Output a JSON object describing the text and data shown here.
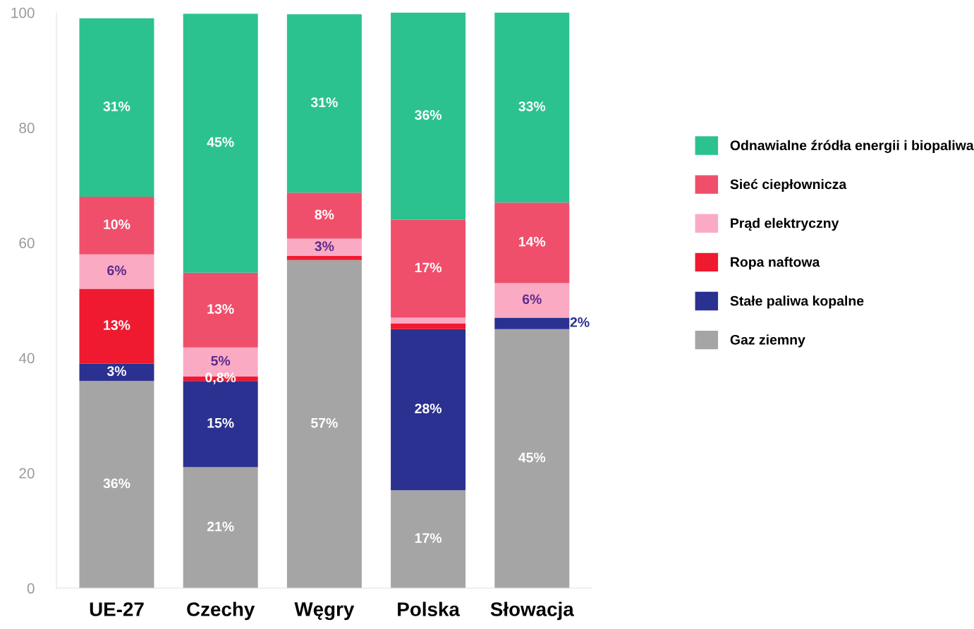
{
  "chart_data": {
    "type": "bar",
    "stacked": true,
    "categories": [
      "UE-27",
      "Czechy",
      "Węgry",
      "Polska",
      "Słowacja"
    ],
    "ylim": [
      0,
      100
    ],
    "yticks": [
      0,
      20,
      40,
      60,
      80,
      100
    ],
    "grid": false,
    "legend": "right",
    "series": [
      {
        "name": "Gaz ziemny",
        "color": "#a5a5a5",
        "values": [
          36,
          21,
          57,
          17,
          45
        ],
        "value_labels": [
          "36%",
          "21%",
          "57%",
          "17%",
          "45%"
        ]
      },
      {
        "name": "Stałe paliwa kopalne",
        "color": "#2b3190",
        "values": [
          3,
          15,
          0,
          28,
          2
        ],
        "value_labels": [
          "3%",
          "15%",
          null,
          "28%",
          "2%"
        ]
      },
      {
        "name": "Ropa naftowa",
        "color": "#ef1a2f",
        "values": [
          13,
          0.8,
          0.7,
          1,
          0
        ],
        "value_labels": [
          "13%",
          "0,8%",
          null,
          null,
          null
        ]
      },
      {
        "name": "Prąd elektryczny",
        "color": "#fbaac4",
        "values": [
          6,
          5,
          3,
          1,
          6
        ],
        "value_labels": [
          "6%",
          "5%",
          "3%",
          null,
          "6%"
        ]
      },
      {
        "name": "Sieć ciepłownicza",
        "color": "#f04f6c",
        "values": [
          10,
          13,
          8,
          17,
          14
        ],
        "value_labels": [
          "10%",
          "13%",
          "8%",
          "17%",
          "14%"
        ]
      },
      {
        "name": "Odnawialne źródła energii i biopaliwa",
        "color": "#2cc28f",
        "values": [
          31,
          45,
          31,
          36,
          33
        ],
        "value_labels": [
          "31%",
          "45%",
          "31%",
          "36%",
          "33%"
        ]
      }
    ]
  }
}
